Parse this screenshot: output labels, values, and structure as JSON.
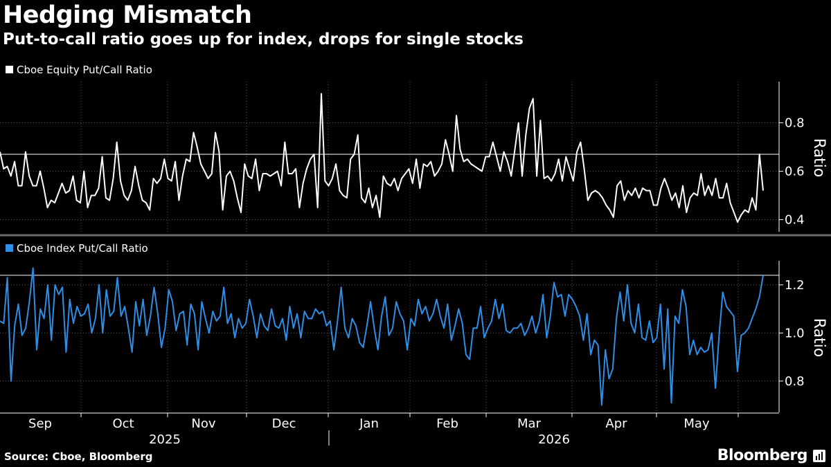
{
  "header": {
    "title": "Hedging Mismatch",
    "subtitle": "Put-to-call ratio goes up for index, drops for single stocks"
  },
  "footer": {
    "source": "Source: Cboe, Bloomberg",
    "brand": "Bloomberg"
  },
  "colors": {
    "background": "#000000",
    "equity_series": "#ffffff",
    "index_series": "#2f8fe8",
    "grid": "#5a5a5a",
    "reference_line": "#ffffff"
  },
  "chart_data": [
    {
      "type": "line",
      "legend_label": "Cboe Equity Put/Call Ratio",
      "ylabel": "Ratio",
      "ylim": [
        0.35,
        0.97
      ],
      "yticks": [
        0.4,
        0.6,
        0.8
      ],
      "ytick_labels": [
        "0.4",
        "0.6",
        "0.8"
      ],
      "reference_value": 0.67,
      "grid": "vertical dotted at months, horizontal dotted at ticks",
      "series": [
        {
          "values": [
            0.68,
            0.61,
            0.62,
            0.58,
            0.64,
            0.54,
            0.54,
            0.68,
            0.58,
            0.54,
            0.54,
            0.6,
            0.53,
            0.45,
            0.48,
            0.47,
            0.51,
            0.55,
            0.51,
            0.52,
            0.58,
            0.48,
            0.47,
            0.6,
            0.45,
            0.5,
            0.5,
            0.53,
            0.66,
            0.49,
            0.48,
            0.57,
            0.72,
            0.56,
            0.5,
            0.48,
            0.52,
            0.62,
            0.54,
            0.48,
            0.47,
            0.44,
            0.57,
            0.55,
            0.57,
            0.65,
            0.57,
            0.56,
            0.64,
            0.48,
            0.58,
            0.65,
            0.64,
            0.76,
            0.7,
            0.63,
            0.6,
            0.57,
            0.59,
            0.76,
            0.68,
            0.44,
            0.58,
            0.6,
            0.56,
            0.49,
            0.43,
            0.63,
            0.58,
            0.57,
            0.65,
            0.52,
            0.59,
            0.59,
            0.58,
            0.59,
            0.6,
            0.54,
            0.72,
            0.59,
            0.59,
            0.61,
            0.45,
            0.55,
            0.61,
            0.65,
            0.67,
            0.45,
            0.92,
            0.56,
            0.54,
            0.57,
            0.63,
            0.52,
            0.5,
            0.49,
            0.65,
            0.67,
            0.75,
            0.49,
            0.47,
            0.53,
            0.45,
            0.5,
            0.41,
            0.58,
            0.55,
            0.54,
            0.57,
            0.52,
            0.57,
            0.59,
            0.61,
            0.55,
            0.65,
            0.53,
            0.63,
            0.62,
            0.64,
            0.58,
            0.6,
            0.63,
            0.73,
            0.67,
            0.6,
            0.83,
            0.69,
            0.64,
            0.65,
            0.63,
            0.62,
            0.61,
            0.6,
            0.66,
            0.66,
            0.72,
            0.66,
            0.6,
            0.68,
            0.64,
            0.58,
            0.69,
            0.8,
            0.58,
            0.75,
            0.86,
            0.9,
            0.58,
            0.81,
            0.57,
            0.58,
            0.56,
            0.59,
            0.65,
            0.56,
            0.66,
            0.61,
            0.56,
            0.68,
            0.72,
            0.61,
            0.48,
            0.51,
            0.52,
            0.51,
            0.49,
            0.46,
            0.44,
            0.41,
            0.54,
            0.56,
            0.48,
            0.52,
            0.5,
            0.53,
            0.49,
            0.53,
            0.52,
            0.52,
            0.46,
            0.46,
            0.53,
            0.57,
            0.53,
            0.48,
            0.51,
            0.45,
            0.54,
            0.43,
            0.49,
            0.51,
            0.5,
            0.59,
            0.5,
            0.54,
            0.5,
            0.57,
            0.49,
            0.49,
            0.55,
            0.47,
            0.43,
            0.39,
            0.42,
            0.44,
            0.43,
            0.49,
            0.44,
            0.67,
            0.52
          ]
        }
      ]
    },
    {
      "type": "line",
      "legend_label": "Cboe Index Put/Call Ratio",
      "ylabel": "Ratio",
      "ylim": [
        0.67,
        1.3
      ],
      "yticks": [
        0.8,
        1.0,
        1.2
      ],
      "ytick_labels": [
        "0.8",
        "1.0",
        "1.2"
      ],
      "reference_value": 1.24,
      "grid": "vertical dotted at months, horizontal dotted at ticks",
      "series": [
        {
          "values": [
            1.05,
            1.04,
            1.23,
            0.8,
            1.03,
            1.12,
            0.99,
            1.02,
            1.13,
            1.27,
            0.93,
            1.1,
            1.06,
            1.2,
            0.97,
            1.2,
            1.16,
            1.19,
            0.92,
            1.14,
            1.04,
            1.11,
            1.07,
            1.08,
            1.12,
            1.0,
            1.06,
            1.2,
            1.0,
            1.18,
            1.07,
            1.09,
            1.23,
            1.07,
            1.11,
            1.02,
            0.92,
            1.13,
            1.03,
            1.14,
            0.99,
            1.07,
            1.19,
            1.08,
            0.94,
            1.02,
            1.18,
            1.13,
            1.01,
            1.08,
            1.09,
            0.95,
            1.12,
            1.08,
            0.93,
            1.13,
            1.06,
            1.0,
            1.09,
            1.05,
            1.07,
            1.19,
            1.04,
            1.08,
            0.98,
            1.06,
            1.02,
            1.04,
            1.14,
            1.07,
            0.98,
            1.08,
            1.03,
            1.01,
            1.1,
            1.03,
            1.02,
            1.06,
            0.97,
            1.11,
            1.02,
            1.08,
            0.98,
            1.09,
            1.06,
            1.06,
            1.1,
            1.08,
            1.09,
            1.03,
            1.05,
            0.93,
            1.05,
            1.19,
            1.02,
            0.98,
            1.06,
            1.03,
            0.96,
            0.94,
            1.03,
            1.13,
            1.02,
            0.93,
            1.07,
            1.15,
            0.99,
            1.02,
            1.13,
            1.08,
            1.05,
            0.93,
            1.06,
            1.03,
            1.14,
            1.08,
            1.11,
            1.05,
            1.08,
            1.14,
            1.07,
            1.02,
            1.12,
            0.97,
            1.03,
            1.1,
            1.04,
            0.91,
            0.89,
            1.02,
            1.02,
            1.11,
            0.98,
            1.02,
            1.05,
            1.14,
            1.06,
            1.12,
            1.01,
            1.0,
            1.02,
            1.02,
            1.04,
            0.99,
            1.02,
            1.07,
            1.0,
            1.05,
            1.16,
            0.98,
            1.07,
            1.21,
            1.15,
            1.16,
            1.07,
            1.16,
            1.14,
            1.11,
            1.07,
            0.97,
            1.08,
            0.91,
            0.97,
            0.95,
            0.7,
            0.93,
            0.81,
            0.85,
            1.06,
            1.17,
            1.05,
            1.2,
            1.04,
            1.0,
            1.12,
            0.98,
            0.97,
            1.05,
            0.96,
            0.98,
            1.12,
            0.85,
            1.1,
            0.71,
            1.07,
            1.04,
            1.18,
            1.11,
            0.91,
            0.97,
            0.91,
            0.94,
            0.92,
            0.93,
            1.0,
            0.77,
            0.99,
            1.17,
            1.11,
            1.09,
            1.07,
            0.84,
            0.99,
            1.0,
            1.02,
            1.06,
            1.1,
            1.15,
            1.24
          ]
        }
      ]
    }
  ],
  "x_axis": {
    "month_labels": [
      "Sep",
      "Oct",
      "Nov",
      "Dec",
      "Jan",
      "Feb",
      "Mar",
      "Apr",
      "May"
    ],
    "year_labels": [
      "2025",
      "2026"
    ]
  }
}
